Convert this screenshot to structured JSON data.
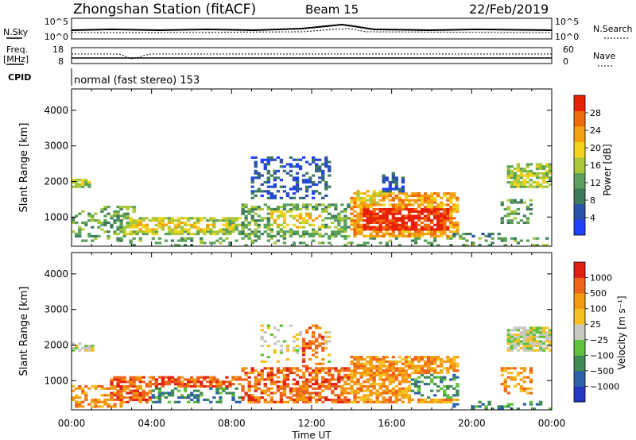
{
  "header": {
    "title": "Zhongshan Station (fitACF)",
    "beam": "Beam 15",
    "date": "22/Feb/2019"
  },
  "summary": {
    "nsky_label": "N.Sky",
    "nsky_ticks": [
      "10^5",
      "10^0"
    ],
    "nsearch_label": "N.Search",
    "nsearch_ticks": [
      "10^5",
      "10^0"
    ],
    "freq_label_1": "Freq.",
    "freq_label_2": "[MHz]",
    "freq_ticks": [
      "18",
      "8"
    ],
    "nave_label": "Nave",
    "nave_ticks": [
      "60",
      "0"
    ],
    "cpid_label": "CPID",
    "cpid_text": "normal (fast stereo) 153"
  },
  "chart_data": [
    {
      "type": "heatmap",
      "name": "power-panel",
      "ylabel": "Slant Range [km]",
      "yticks": [
        1000,
        2000,
        3000,
        4000
      ],
      "ylim": [
        180,
        4600
      ],
      "xlim": [
        0,
        24
      ],
      "colorbar_label": "Power [dB]",
      "colorbar_ticks": [
        "28",
        "24",
        "20",
        "16",
        "12",
        "8",
        "4"
      ],
      "colors": [
        "#2040ff",
        "#2a52a8",
        "#3e7b5c",
        "#5aa05a",
        "#a8c83a",
        "#f2d21a",
        "#f5a010",
        "#f06a0a",
        "#e82008"
      ],
      "blobs": [
        {
          "t0": 0,
          "t1": 0.9,
          "r0": 1800,
          "r1": 2050,
          "c": 4,
          "d": 0.7
        },
        {
          "t0": 0,
          "t1": 1.6,
          "r0": 300,
          "r1": 1200,
          "c": 3,
          "d": 0.35
        },
        {
          "t0": 1.5,
          "t1": 3.2,
          "r0": 450,
          "r1": 1300,
          "c": 3,
          "d": 0.45
        },
        {
          "t0": 2.5,
          "t1": 8.6,
          "r0": 500,
          "r1": 1000,
          "c": 4,
          "d": 0.75
        },
        {
          "t0": 3,
          "t1": 7.5,
          "r0": 600,
          "r1": 900,
          "c": 5,
          "d": 0.5
        },
        {
          "t0": 8.5,
          "t1": 14,
          "r0": 400,
          "r1": 1400,
          "c": 3,
          "d": 0.55
        },
        {
          "t0": 9,
          "t1": 13,
          "r0": 1500,
          "r1": 2700,
          "c": 1,
          "d": 0.35
        },
        {
          "t0": 10,
          "t1": 12.6,
          "r0": 700,
          "r1": 1200,
          "c": 5,
          "d": 0.5
        },
        {
          "t0": 14,
          "t1": 19.3,
          "r0": 400,
          "r1": 1700,
          "c": 6,
          "d": 0.7
        },
        {
          "t0": 14.5,
          "t1": 18.8,
          "r0": 650,
          "r1": 1250,
          "c": 8,
          "d": 0.85
        },
        {
          "t0": 14.3,
          "t1": 15.5,
          "r0": 1400,
          "r1": 1750,
          "c": 5,
          "d": 0.6
        },
        {
          "t0": 15.5,
          "t1": 16.6,
          "r0": 1700,
          "r1": 2250,
          "c": 1,
          "d": 0.5
        },
        {
          "t0": 19,
          "t1": 21.5,
          "r0": 200,
          "r1": 550,
          "c": 2,
          "d": 0.35
        },
        {
          "t0": 21.8,
          "t1": 24,
          "r0": 1850,
          "r1": 2500,
          "c": 4,
          "d": 0.7
        },
        {
          "t0": 21.5,
          "t1": 23,
          "r0": 800,
          "r1": 1500,
          "c": 3,
          "d": 0.4
        },
        {
          "t0": 0,
          "t1": 24,
          "r0": 200,
          "r1": 450,
          "c": 3,
          "d": 0.25
        }
      ]
    },
    {
      "type": "heatmap",
      "name": "velocity-panel",
      "ylabel": "Slant Range [km]",
      "xlabel": "Time UT",
      "xticks": [
        "00:00",
        "04:00",
        "08:00",
        "12:00",
        "16:00",
        "20:00",
        "00:00"
      ],
      "yticks": [
        1000,
        2000,
        3000,
        4000
      ],
      "ylim": [
        180,
        4600
      ],
      "xlim": [
        0,
        24
      ],
      "colorbar_label": "Velocity [m s⁻¹]",
      "colorbar_ticks": [
        "1000",
        "500",
        "100",
        "25",
        "−25",
        "−100",
        "−500",
        "−1000"
      ],
      "colors": [
        "#2438c8",
        "#2e62a8",
        "#3f8a55",
        "#5ec23a",
        "#c8c8c0",
        "#f7c020",
        "#f59a10",
        "#f0641a",
        "#e02010"
      ],
      "blobs": [
        {
          "t0": 0,
          "t1": 1.2,
          "r0": 1800,
          "r1": 2050,
          "c": 4,
          "d": 0.7
        },
        {
          "t0": 0,
          "t1": 2.5,
          "r0": 250,
          "r1": 900,
          "c": 6,
          "d": 0.5
        },
        {
          "t0": 2,
          "t1": 9,
          "r0": 400,
          "r1": 1100,
          "c": 7,
          "d": 0.75
        },
        {
          "t0": 4,
          "t1": 8.6,
          "r0": 350,
          "r1": 800,
          "c": 2,
          "d": 0.35
        },
        {
          "t0": 8.5,
          "t1": 14,
          "r0": 400,
          "r1": 1400,
          "c": 7,
          "d": 0.6
        },
        {
          "t0": 9.5,
          "t1": 13,
          "r0": 1500,
          "r1": 2600,
          "c": 4,
          "d": 0.2
        },
        {
          "t0": 11.5,
          "t1": 12.6,
          "r0": 1400,
          "r1": 2600,
          "c": 7,
          "d": 0.35
        },
        {
          "t0": 14,
          "t1": 19.3,
          "r0": 400,
          "r1": 1700,
          "c": 6,
          "d": 0.75
        },
        {
          "t0": 17,
          "t1": 19.3,
          "r0": 500,
          "r1": 1200,
          "c": 2,
          "d": 0.45
        },
        {
          "t0": 21.8,
          "t1": 24,
          "r0": 1800,
          "r1": 2500,
          "c": 4,
          "d": 0.8
        },
        {
          "t0": 21.5,
          "t1": 23,
          "r0": 600,
          "r1": 1400,
          "c": 6,
          "d": 0.35
        },
        {
          "t0": 19,
          "t1": 24,
          "r0": 200,
          "r1": 450,
          "c": 2,
          "d": 0.25
        }
      ]
    }
  ]
}
